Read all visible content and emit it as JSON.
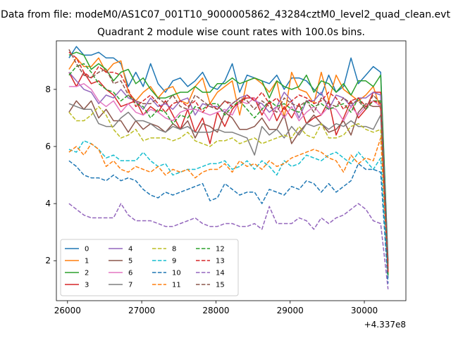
{
  "figure": {
    "suptitle": "Data from file: modeM0/AS1C07_001T10_9000005862_43284cztM0_level2_quad_clean.evt",
    "background": "#ffffff"
  },
  "chart_data": {
    "type": "line",
    "title": "Quadrant 2 module wise count rates with 100.0s bins.",
    "xlabel": "",
    "ylabel": "",
    "x_offset_label": "+4.337e8",
    "xlim": [
      25850,
      30560
    ],
    "ylim": [
      0.6,
      9.7
    ],
    "grid": false,
    "legend_position": "lower-left",
    "legend_columns": 4,
    "x_ticks": [
      26000,
      27000,
      28000,
      29000,
      30000
    ],
    "x_tick_labels": [
      "26000",
      "27000",
      "28000",
      "29000",
      "30000"
    ],
    "y_ticks": [
      2,
      4,
      6,
      8
    ],
    "y_tick_labels": [
      "2",
      "4",
      "6",
      "8"
    ],
    "x": [
      26020,
      26120,
      26220,
      26320,
      26420,
      26520,
      26620,
      26720,
      26820,
      26920,
      27020,
      27120,
      27220,
      27320,
      27420,
      27520,
      27620,
      27720,
      27820,
      27920,
      28020,
      28120,
      28220,
      28320,
      28420,
      28520,
      28620,
      28720,
      28820,
      28920,
      29020,
      29120,
      29220,
      29320,
      29420,
      29520,
      29620,
      29720,
      29820,
      29920,
      30020,
      30120,
      30220,
      30320
    ],
    "series": [
      {
        "name": "0",
        "color": "#1f77b4",
        "dash": "solid",
        "values": [
          9.1,
          9.5,
          9.2,
          9.2,
          9.3,
          9.1,
          9.1,
          8.9,
          8.1,
          8.6,
          8.1,
          8.9,
          8.2,
          7.9,
          8.3,
          8.4,
          8.1,
          8.3,
          8.6,
          8.1,
          8.0,
          8.3,
          8.9,
          7.9,
          8.5,
          8.4,
          8.3,
          8.2,
          8.5,
          8.0,
          8.4,
          8.4,
          8.3,
          8.0,
          7.8,
          8.5,
          7.9,
          8.1,
          9.1,
          8.2,
          8.5,
          8.8,
          8.6,
          2.0
        ]
      },
      {
        "name": "1",
        "color": "#ff7f0e",
        "dash": "solid",
        "values": [
          8.7,
          9.1,
          8.8,
          8.8,
          9.1,
          8.6,
          8.9,
          9.0,
          7.9,
          7.6,
          7.9,
          8.1,
          7.7,
          8.0,
          8.1,
          7.6,
          7.5,
          8.1,
          8.4,
          7.5,
          7.9,
          8.1,
          8.3,
          7.1,
          8.3,
          8.4,
          8.2,
          7.9,
          8.3,
          7.0,
          8.6,
          8.0,
          7.9,
          7.5,
          8.6,
          7.6,
          8.5,
          8.0,
          7.8,
          7.6,
          7.8,
          8.1,
          7.3,
          1.7
        ]
      },
      {
        "name": "2",
        "color": "#2ca02c",
        "dash": "solid",
        "values": [
          9.2,
          9.3,
          9.2,
          8.7,
          8.9,
          8.7,
          8.3,
          8.6,
          8.7,
          8.2,
          8.4,
          8.0,
          7.7,
          7.7,
          7.8,
          7.9,
          7.9,
          8.1,
          7.9,
          7.9,
          8.2,
          8.2,
          8.4,
          8.2,
          8.3,
          8.4,
          8.3,
          7.7,
          8.3,
          8.1,
          8.0,
          8.1,
          8.5,
          7.9,
          8.3,
          8.2,
          7.9,
          8.2,
          7.8,
          8.3,
          8.3,
          8.1,
          8.5,
          1.9
        ]
      },
      {
        "name": "3",
        "color": "#d62728",
        "dash": "solid",
        "values": [
          8.6,
          8.1,
          8.6,
          8.2,
          8.3,
          8.0,
          7.8,
          7.4,
          7.5,
          7.6,
          7.1,
          7.4,
          7.2,
          7.6,
          7.1,
          6.6,
          7.3,
          6.5,
          7.0,
          6.1,
          7.2,
          6.7,
          7.3,
          7.6,
          7.7,
          7.7,
          7.1,
          7.6,
          6.9,
          7.4,
          7.0,
          7.5,
          6.8,
          7.0,
          7.1,
          7.6,
          6.4,
          7.0,
          7.6,
          7.0,
          7.3,
          7.9,
          7.9,
          1.6
        ]
      },
      {
        "name": "4",
        "color": "#9467bd",
        "dash": "solid",
        "values": [
          8.6,
          8.3,
          8.0,
          7.9,
          7.5,
          7.8,
          7.7,
          8.0,
          7.7,
          7.6,
          7.3,
          7.7,
          7.4,
          7.5,
          7.3,
          7.6,
          7.7,
          7.1,
          7.5,
          7.4,
          7.4,
          7.2,
          7.5,
          7.7,
          7.8,
          7.6,
          7.5,
          7.2,
          7.4,
          7.9,
          7.6,
          7.0,
          7.6,
          7.6,
          7.9,
          7.3,
          7.8,
          7.7,
          7.4,
          7.7,
          7.7,
          7.9,
          7.8,
          1.8
        ]
      },
      {
        "name": "5",
        "color": "#8c564b",
        "dash": "solid",
        "values": [
          7.2,
          7.6,
          7.3,
          7.6,
          7.0,
          7.3,
          6.9,
          6.9,
          6.5,
          6.9,
          6.6,
          6.8,
          6.7,
          6.5,
          6.8,
          6.6,
          6.9,
          6.3,
          6.8,
          6.7,
          6.5,
          7.2,
          7.0,
          6.6,
          6.6,
          6.7,
          7.0,
          6.6,
          6.6,
          7.1,
          6.1,
          6.5,
          6.8,
          7.1,
          6.8,
          6.5,
          6.6,
          6.9,
          6.4,
          7.2,
          7.5,
          7.4,
          7.4,
          1.5
        ]
      },
      {
        "name": "6",
        "color": "#e377c2",
        "dash": "solid",
        "values": [
          8.1,
          8.1,
          8.2,
          8.0,
          7.6,
          7.4,
          7.6,
          7.2,
          7.5,
          7.2,
          7.1,
          7.3,
          7.2,
          7.0,
          6.9,
          7.2,
          7.3,
          7.3,
          7.2,
          7.1,
          7.2,
          7.3,
          7.1,
          7.6,
          7.5,
          7.7,
          7.3,
          6.9,
          7.4,
          7.0,
          7.4,
          6.9,
          7.2,
          7.4,
          7.1,
          7.4,
          7.3,
          6.9,
          7.4,
          7.1,
          7.4,
          7.6,
          7.4,
          1.6
        ]
      },
      {
        "name": "7",
        "color": "#7f7f7f",
        "dash": "solid",
        "values": [
          7.5,
          7.4,
          7.3,
          7.3,
          6.8,
          6.7,
          6.7,
          7.0,
          7.2,
          6.9,
          6.9,
          6.8,
          6.6,
          6.5,
          6.7,
          6.6,
          6.7,
          6.5,
          6.5,
          6.5,
          6.6,
          6.5,
          6.5,
          6.4,
          6.3,
          5.7,
          6.7,
          6.4,
          6.6,
          6.3,
          6.7,
          6.4,
          6.8,
          6.7,
          6.8,
          6.6,
          6.8,
          6.7,
          6.9,
          6.7,
          6.7,
          6.6,
          7.1,
          1.4
        ]
      },
      {
        "name": "8",
        "color": "#bcbd22",
        "dash": "dashed",
        "values": [
          7.2,
          6.9,
          6.9,
          7.1,
          7.4,
          7.1,
          6.6,
          6.3,
          6.4,
          6.6,
          6.2,
          6.3,
          6.3,
          6.3,
          6.2,
          6.3,
          6.5,
          6.2,
          6.1,
          6.0,
          6.2,
          6.2,
          6.3,
          6.1,
          6.2,
          6.3,
          6.1,
          6.2,
          6.3,
          6.4,
          6.3,
          6.7,
          6.4,
          6.3,
          6.8,
          6.3,
          6.3,
          6.4,
          6.7,
          6.8,
          6.6,
          6.5,
          6.6,
          1.6
        ]
      },
      {
        "name": "9",
        "color": "#17becf",
        "dash": "dashed",
        "values": [
          5.9,
          5.8,
          6.2,
          6.1,
          5.9,
          5.6,
          5.7,
          5.5,
          5.5,
          5.5,
          5.8,
          5.5,
          5.3,
          5.4,
          5.0,
          5.1,
          5.2,
          5.2,
          5.3,
          5.4,
          5.4,
          5.5,
          5.2,
          5.3,
          5.5,
          5.2,
          5.5,
          5.3,
          5.0,
          5.5,
          5.3,
          5.4,
          5.7,
          5.6,
          5.5,
          5.7,
          5.8,
          5.6,
          5.4,
          5.8,
          5.5,
          5.2,
          5.6,
          1.4
        ]
      },
      {
        "name": "10",
        "color": "#1f77b4",
        "dash": "dashed",
        "values": [
          5.5,
          5.3,
          5.0,
          4.9,
          4.9,
          4.8,
          5.0,
          4.8,
          4.9,
          4.8,
          4.5,
          4.3,
          4.2,
          4.4,
          4.3,
          4.4,
          4.5,
          4.6,
          4.7,
          4.1,
          4.2,
          4.7,
          4.5,
          4.3,
          4.4,
          4.4,
          4.0,
          4.5,
          4.4,
          4.3,
          4.6,
          4.5,
          4.8,
          4.7,
          4.4,
          4.7,
          4.4,
          4.6,
          4.8,
          5.4,
          5.2,
          5.2,
          5.1,
          1.2
        ]
      },
      {
        "name": "11",
        "color": "#ff7f0e",
        "dash": "dashed",
        "values": [
          5.8,
          6.0,
          5.7,
          6.1,
          5.9,
          5.3,
          5.5,
          5.2,
          5.1,
          5.3,
          5.2,
          5.1,
          5.3,
          5.0,
          5.2,
          5.1,
          5.2,
          4.9,
          5.1,
          5.2,
          5.2,
          5.4,
          5.1,
          5.5,
          5.3,
          5.4,
          5.2,
          5.5,
          5.3,
          5.4,
          5.6,
          5.7,
          5.8,
          5.9,
          5.8,
          5.6,
          5.5,
          5.1,
          5.7,
          5.4,
          5.6,
          5.5,
          6.3,
          1.8
        ]
      },
      {
        "name": "12",
        "color": "#2ca02c",
        "dash": "dashed",
        "values": [
          8.5,
          8.8,
          8.9,
          8.6,
          8.2,
          8.0,
          7.9,
          7.6,
          7.8,
          7.5,
          7.4,
          7.0,
          7.3,
          7.2,
          6.8,
          7.1,
          7.0,
          7.4,
          7.3,
          7.5,
          7.5,
          7.1,
          7.4,
          7.6,
          7.3,
          7.0,
          7.3,
          7.6,
          7.4,
          7.5,
          7.3,
          7.2,
          7.6,
          7.4,
          7.5,
          7.3,
          7.4,
          7.5,
          7.2,
          7.7,
          7.3,
          7.6,
          7.6,
          1.5
        ]
      },
      {
        "name": "13",
        "color": "#d62728",
        "dash": "dashed",
        "values": [
          9.3,
          9.1,
          8.6,
          8.4,
          8.8,
          8.6,
          8.6,
          8.5,
          8.0,
          7.4,
          7.6,
          7.8,
          7.5,
          7.2,
          7.5,
          7.6,
          7.4,
          7.6,
          7.2,
          7.5,
          7.3,
          7.6,
          7.4,
          7.5,
          7.8,
          7.6,
          7.9,
          7.5,
          7.7,
          7.3,
          7.6,
          7.8,
          7.7,
          7.5,
          7.6,
          7.9,
          7.7,
          7.3,
          7.6,
          7.7,
          7.4,
          7.6,
          7.5,
          1.6
        ]
      },
      {
        "name": "14",
        "color": "#9467bd",
        "dash": "dashed",
        "values": [
          4.0,
          3.8,
          3.6,
          3.5,
          3.5,
          3.5,
          3.5,
          4.0,
          3.6,
          3.4,
          3.4,
          3.4,
          3.3,
          3.2,
          3.2,
          3.3,
          3.4,
          3.5,
          3.3,
          3.2,
          3.2,
          3.3,
          3.3,
          3.2,
          3.2,
          3.3,
          3.1,
          3.9,
          3.3,
          3.3,
          3.3,
          3.5,
          3.4,
          3.1,
          3.5,
          3.3,
          3.5,
          3.6,
          3.8,
          4.0,
          3.8,
          3.4,
          3.3,
          1.0
        ]
      },
      {
        "name": "15",
        "color": "#8c564b",
        "dash": "dashed",
        "values": [
          9.4,
          8.9,
          8.5,
          8.4,
          8.6,
          8.7,
          8.2,
          8.3,
          7.8,
          7.6,
          7.5,
          7.5,
          7.7,
          7.5,
          7.8,
          7.4,
          7.3,
          7.8,
          7.6,
          7.4,
          7.3,
          7.6,
          7.5,
          7.7,
          7.6,
          7.3,
          7.6,
          7.4,
          7.2,
          7.7,
          7.5,
          7.4,
          7.6,
          7.2,
          7.7,
          7.5,
          7.4,
          7.7,
          7.5,
          7.6,
          7.3,
          7.8,
          7.5,
          1.7
        ]
      }
    ]
  }
}
